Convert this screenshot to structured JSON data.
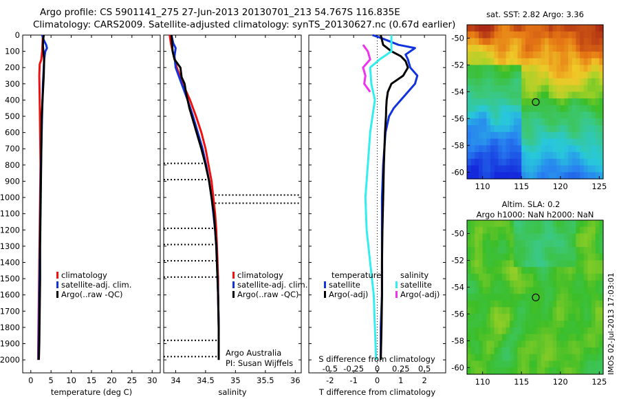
{
  "header": {
    "line1": "Argo profile: CS 5901141_275 27-Jun-2013 20130701_213 54.767S 116.835E",
    "line2": "Climatology: CARS2009. Satellite-adjusted climatology: synTS_20130627.nc (0.67d earlier)"
  },
  "colors": {
    "climatology": "#ee1111",
    "satellite": "#1133dd",
    "argo": "#000000",
    "salinity_satellite": "#33eeee",
    "salinity_argo": "#ee33ee"
  },
  "chart_data": [
    {
      "type": "line",
      "id": "temperature-profile",
      "xlabel": "temperature (deg C)",
      "xlim": [
        -2,
        32
      ],
      "xticks": [
        0,
        5,
        10,
        15,
        20,
        25,
        30
      ],
      "ylim": [
        0,
        2080
      ],
      "yticks": [
        0,
        100,
        200,
        300,
        400,
        500,
        600,
        700,
        800,
        900,
        1000,
        1100,
        1200,
        1300,
        1400,
        1500,
        1600,
        1700,
        1800,
        1900,
        2000
      ],
      "legend": [
        "climatology",
        "satellite-adj. clim.",
        "Argo(..raw -QC)"
      ],
      "series": [
        {
          "name": "climatology",
          "color_key": "climatology",
          "depth": [
            0,
            50,
            100,
            150,
            180,
            250,
            400,
            600,
            800,
            1000,
            1200,
            1400,
            1600,
            1800,
            2000
          ],
          "values": [
            3.0,
            2.9,
            2.8,
            2.6,
            2.2,
            2.1,
            2.2,
            2.3,
            2.4,
            2.3,
            2.2,
            2.1,
            2.0,
            1.9,
            1.8
          ]
        },
        {
          "name": "satellite-adj. clim.",
          "color_key": "satellite",
          "depth": [
            0,
            30,
            60,
            80,
            100,
            150,
            200,
            300,
            400,
            600,
            800,
            1000,
            1200,
            1400,
            1600,
            1800,
            2000
          ],
          "values": [
            2.8,
            3.2,
            3.8,
            4.0,
            3.6,
            3.3,
            3.2,
            3.0,
            2.9,
            2.7,
            2.5,
            2.4,
            2.3,
            2.2,
            2.1,
            2.0,
            1.9
          ]
        },
        {
          "name": "Argo(..raw -QC)",
          "color_key": "argo",
          "depth": [
            0,
            20,
            60,
            100,
            150,
            250,
            350,
            400,
            500,
            700,
            900,
            1100,
            1300,
            1500,
            1700,
            1900,
            2000
          ],
          "values": [
            3.2,
            3.1,
            3.0,
            3.1,
            3.3,
            3.2,
            3.0,
            2.9,
            2.7,
            2.6,
            2.5,
            2.4,
            2.3,
            2.3,
            2.2,
            2.1,
            2.0
          ]
        }
      ]
    },
    {
      "type": "line",
      "id": "salinity-profile",
      "xlabel": "salinity",
      "xlim": [
        33.8,
        36.1
      ],
      "xticks": [
        34,
        34.5,
        35,
        35.5,
        36
      ],
      "ylim": [
        0,
        2080
      ],
      "legend": [
        "climatology",
        "satellite-adj. clim.",
        "Argo(..raw -QC)"
      ],
      "annotations": [
        "Argo Australia",
        "PI: Susan Wijffels"
      ],
      "series": [
        {
          "name": "climatology",
          "color_key": "climatology",
          "depth": [
            0,
            50,
            100,
            200,
            300,
            400,
            500,
            600,
            700,
            800,
            900,
            1000,
            1100,
            1200,
            1300,
            1400,
            1500,
            1600,
            1800,
            2000
          ],
          "values": [
            33.9,
            33.92,
            33.95,
            34.02,
            34.12,
            34.24,
            34.34,
            34.43,
            34.5,
            34.55,
            34.6,
            34.63,
            34.66,
            34.68,
            34.69,
            34.7,
            34.71,
            34.71,
            34.72,
            34.72
          ]
        },
        {
          "name": "satellite-adj. clim.",
          "color_key": "satellite",
          "depth": [
            0,
            50,
            80,
            130,
            200,
            300,
            400,
            500,
            600,
            700,
            800,
            900,
            1000,
            1100,
            1200,
            1300,
            1400,
            1500,
            1600,
            1800,
            2000
          ],
          "values": [
            33.93,
            33.96,
            34.0,
            33.98,
            34.0,
            34.1,
            34.2,
            34.29,
            34.37,
            34.45,
            34.51,
            34.56,
            34.6,
            34.63,
            34.66,
            34.68,
            34.69,
            34.7,
            34.71,
            34.72,
            34.72
          ]
        },
        {
          "name": "Argo(..raw -QC)",
          "color_key": "argo",
          "depth": [
            0,
            100,
            150,
            200,
            260,
            300,
            350,
            400,
            450,
            500,
            600,
            700,
            800,
            900,
            1000,
            1100,
            1200,
            1300,
            1400,
            1500,
            1600,
            1800,
            2000
          ],
          "values": [
            33.93,
            33.95,
            33.98,
            34.08,
            34.1,
            34.15,
            34.17,
            34.2,
            34.23,
            34.27,
            34.35,
            34.43,
            34.5,
            34.56,
            34.6,
            34.64,
            34.66,
            34.68,
            34.69,
            34.7,
            34.71,
            34.72,
            34.72
          ]
        }
      ],
      "flagged_levels": [
        {
          "depth": 790,
          "from": 33.8,
          "to": 34.49
        },
        {
          "depth": 890,
          "from": 33.8,
          "to": 34.56
        },
        {
          "depth": 985,
          "from": 34.6,
          "to": 36.1
        },
        {
          "depth": 1035,
          "from": 34.6,
          "to": 36.1
        },
        {
          "depth": 1190,
          "from": 33.8,
          "to": 34.66
        },
        {
          "depth": 1290,
          "from": 33.8,
          "to": 34.68
        },
        {
          "depth": 1390,
          "from": 33.8,
          "to": 34.69
        },
        {
          "depth": 1490,
          "from": 33.8,
          "to": 34.7
        },
        {
          "depth": 1880,
          "from": 33.8,
          "to": 34.72
        },
        {
          "depth": 1980,
          "from": 33.8,
          "to": 34.72
        }
      ]
    },
    {
      "type": "line",
      "id": "difference-profile",
      "xlabel": "T difference from climatology",
      "top_axis_label": "S difference from climatology",
      "xlim": [
        -2.9,
        2.9
      ],
      "xticks": [
        -2,
        -1,
        0,
        1,
        2
      ],
      "top_ticks": [
        -0.5,
        -0.25,
        0,
        0.25,
        0.5
      ],
      "top_tick_labels": [
        "-0.5",
        "-0.25",
        "0",
        "0.25",
        "0.5"
      ],
      "legend_temperature_title": "temperature",
      "legend_salinity_title": "salinity",
      "legend_temperature": [
        "satellite",
        "Argo(-adj)"
      ],
      "legend_salinity": [
        "satellite",
        "Argo(-adj)"
      ],
      "series": [
        {
          "name": "T satellite",
          "color_key": "satellite",
          "depth": [
            0,
            20,
            60,
            80,
            100,
            120,
            150,
            200,
            250,
            300,
            350,
            400,
            450,
            500,
            600,
            800,
            1000,
            1200,
            1400,
            1600,
            1800,
            2000
          ],
          "values": [
            -0.2,
            0.2,
            0.9,
            1.6,
            1.4,
            1.2,
            1.3,
            1.4,
            1.7,
            1.6,
            1.3,
            1.0,
            0.7,
            0.5,
            0.35,
            0.25,
            0.2,
            0.2,
            0.2,
            0.2,
            0.15,
            0.15
          ]
        },
        {
          "name": "T Argo(-adj)",
          "color_key": "argo",
          "depth": [
            0,
            60,
            100,
            130,
            160,
            200,
            250,
            300,
            350,
            400,
            450,
            500,
            600,
            800,
            1000,
            1200,
            1400,
            1600,
            1800,
            2000
          ],
          "values": [
            0.15,
            0.25,
            0.6,
            1.0,
            1.2,
            1.3,
            1.1,
            0.6,
            0.45,
            0.4,
            0.38,
            0.37,
            0.33,
            0.28,
            0.25,
            0.22,
            0.2,
            0.2,
            0.18,
            0.15
          ]
        },
        {
          "name": "S satellite",
          "color_key": "salinity_satellite",
          "depth": [
            0,
            100,
            150,
            200,
            300,
            400,
            500,
            600,
            800,
            1000,
            1200,
            1400,
            1600,
            1800,
            2000
          ],
          "values": [
            0.6,
            0.6,
            0.1,
            -0.3,
            -0.25,
            -0.1,
            -0.2,
            -0.3,
            -0.4,
            -0.5,
            -0.45,
            -0.3,
            -0.15,
            -0.1,
            -0.05
          ]
        },
        {
          "name": "S Argo(-adj)",
          "color_key": "salinity_argo",
          "depth": [
            60,
            100,
            150,
            200,
            250,
            300,
            350
          ],
          "values": [
            -0.6,
            -0.4,
            -0.3,
            -0.6,
            -0.5,
            -0.55,
            -0.3
          ]
        }
      ]
    },
    {
      "type": "heatmap",
      "id": "sst-map",
      "title": "sat. SST: 2.82 Argo: 3.36",
      "xticks": [
        110,
        115,
        120,
        125
      ],
      "yticks": [
        -50,
        -52,
        -54,
        -56,
        -58,
        -60
      ],
      "xlim": [
        108,
        125.5
      ],
      "ylim": [
        -60.5,
        -49
      ],
      "marker": {
        "lon": 116.835,
        "lat": -54.767
      }
    },
    {
      "type": "heatmap",
      "id": "sla-map",
      "title": "Altim. SLA: 0.2",
      "subtitle": "Argo h1000: NaN h2000: NaN",
      "xticks": [
        110,
        115,
        120,
        125
      ],
      "yticks": [
        -50,
        -52,
        -54,
        -56,
        -58,
        -60
      ],
      "xlim": [
        108,
        125.5
      ],
      "ylim": [
        -60.5,
        -49
      ],
      "marker": {
        "lon": 116.835,
        "lat": -54.767
      }
    }
  ],
  "footer": {
    "stamp": "IMOS 02-Jul-2013 17:03:01"
  }
}
